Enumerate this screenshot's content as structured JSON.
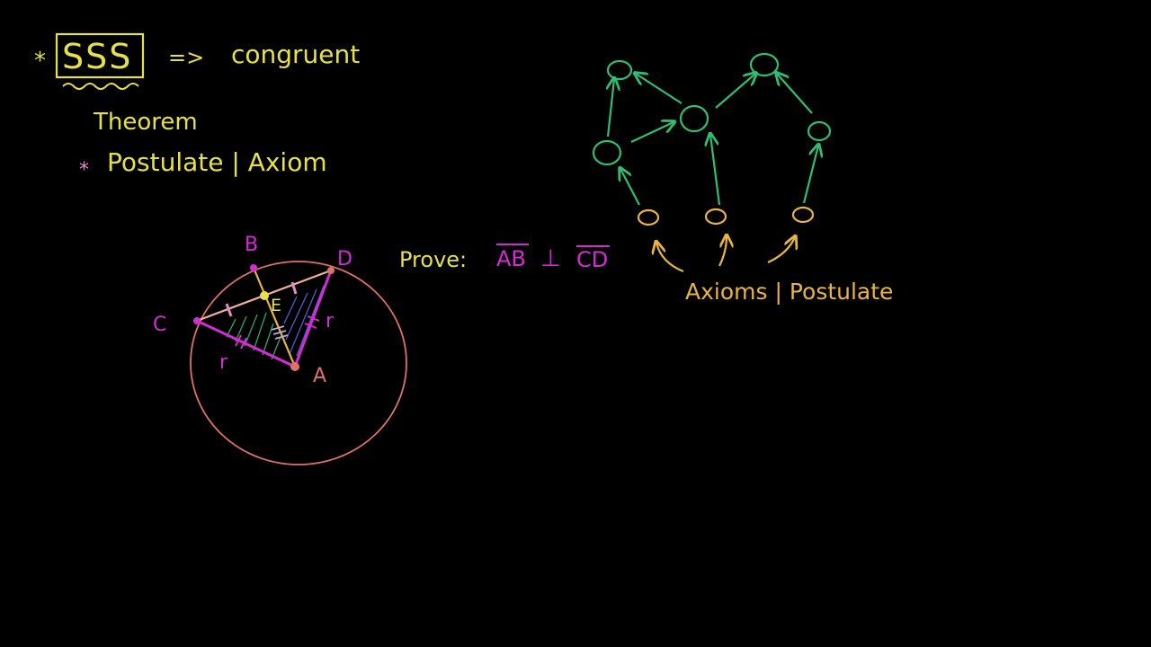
{
  "notes": {
    "sss": "SSS",
    "implies": "=>",
    "congruent": "congruent",
    "theorem": "Theorem",
    "postulate_axiom": "Postulate | Axiom",
    "star": "*"
  },
  "geometry": {
    "labels": {
      "B": "B",
      "D": "D",
      "C": "C",
      "E": "E",
      "A": "A",
      "r1": "r",
      "r2": "r"
    },
    "prove": "Prove:",
    "ab": "AB",
    "perp": "⊥",
    "cd": "CD"
  },
  "tree": {
    "caption": "Axioms | Postulate"
  },
  "colors": {
    "yellow": "#e6e04a",
    "green": "#2fbf72",
    "magenta": "#d42bd4",
    "salmon": "#e0706a",
    "orange": "#e8b640",
    "pink": "#e08ac8",
    "background": "#000000"
  }
}
